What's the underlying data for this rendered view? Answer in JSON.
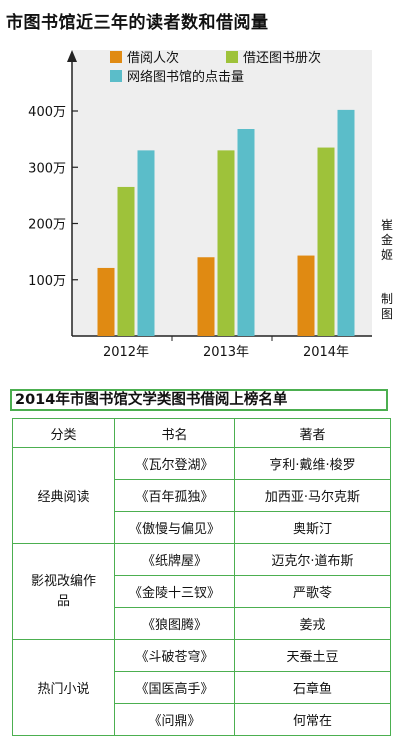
{
  "title": "市图书馆近三年的读者数和借阅量",
  "credit": [
    "崔",
    "金",
    "姬",
    "制",
    "图"
  ],
  "chart_data": {
    "type": "bar",
    "categories": [
      "2012年",
      "2013年",
      "2014年"
    ],
    "series": [
      {
        "name": "借阅人次",
        "color": "#e08a12",
        "values": [
          121,
          140,
          143
        ]
      },
      {
        "name": "借还图书册次",
        "color": "#9ec23a",
        "values": [
          265,
          330,
          335
        ]
      },
      {
        "name": "网络图书馆的点击量",
        "color": "#5bbdc9",
        "values": [
          330,
          368,
          402
        ]
      }
    ],
    "yticks": [
      100,
      200,
      300,
      400
    ],
    "ytick_labels": [
      "100万",
      "200万",
      "300万",
      "400万"
    ],
    "ylim": [
      0,
      480
    ],
    "legend_position": "top",
    "grid": false
  },
  "table": {
    "title": "2014年市图书馆文学类图书借阅上榜名单",
    "headers": [
      "分类",
      "书名",
      "著者"
    ],
    "groups": [
      {
        "category": "经典阅读",
        "rows": [
          {
            "book": "《瓦尔登湖》",
            "author": "亨利·戴维·梭罗"
          },
          {
            "book": "《百年孤独》",
            "author": "加西亚·马尔克斯"
          },
          {
            "book": "《傲慢与偏见》",
            "author": "奥斯汀"
          }
        ]
      },
      {
        "category": "影视改编作品",
        "rows": [
          {
            "book": "《纸牌屋》",
            "author": "迈克尔·道布斯"
          },
          {
            "book": "《金陵十三钗》",
            "author": "严歌苓"
          },
          {
            "book": "《狼图腾》",
            "author": "姜戎"
          }
        ]
      },
      {
        "category": "热门小说",
        "rows": [
          {
            "book": "《斗破苍穹》",
            "author": "天蚕土豆"
          },
          {
            "book": "《国医高手》",
            "author": "石章鱼"
          },
          {
            "book": "《问鼎》",
            "author": "何常在"
          }
        ]
      }
    ]
  }
}
